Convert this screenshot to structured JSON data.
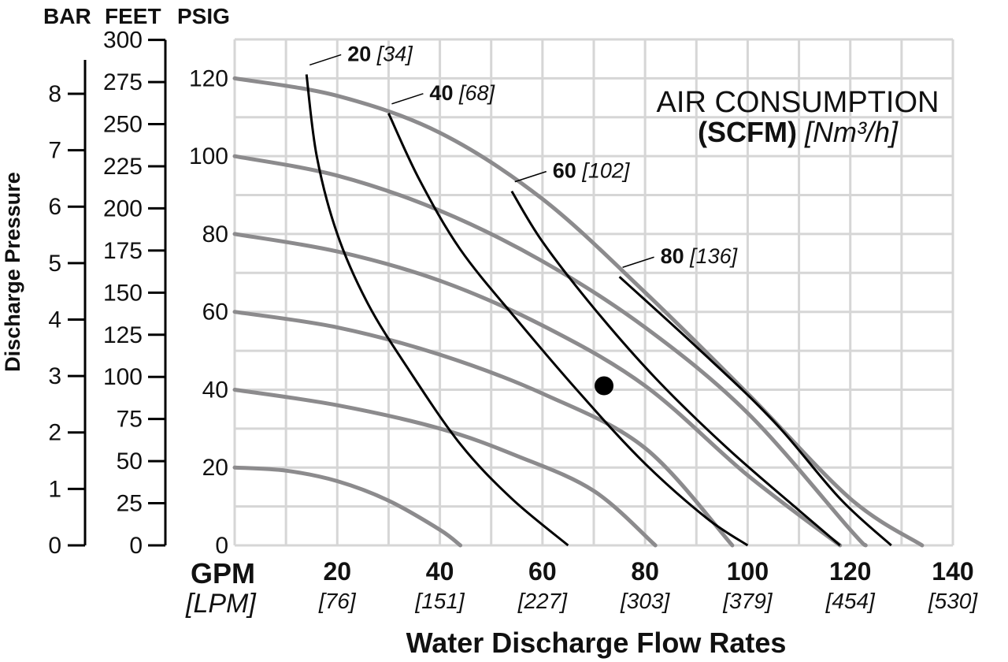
{
  "chart_data": {
    "type": "line",
    "title_line1": "AIR CONSUMPTION",
    "title_line2_bold": "(SCFM)",
    "title_line2_italic": "[Nm³/h]",
    "xlabel": "Water Discharge Flow Rates",
    "ylabel": "Discharge Pressure",
    "x_unit_primary": "GPM",
    "x_unit_secondary": "[LPM]",
    "xlim": [
      0,
      140
    ],
    "ylim": [
      0,
      130
    ],
    "x_ticks": [
      {
        "gpm": "20",
        "lpm": "[76]"
      },
      {
        "gpm": "40",
        "lpm": "[151]"
      },
      {
        "gpm": "60",
        "lpm": "[227]"
      },
      {
        "gpm": "80",
        "lpm": "[303]"
      },
      {
        "gpm": "100",
        "lpm": "[379]"
      },
      {
        "gpm": "120",
        "lpm": "[454]"
      },
      {
        "gpm": "140",
        "lpm": "[530]"
      }
    ],
    "psig_axis": {
      "label": "PSIG",
      "ticks": [
        "0",
        "20",
        "40",
        "60",
        "80",
        "100",
        "120"
      ]
    },
    "feet_axis": {
      "label": "FEET",
      "ticks": [
        "0",
        "25",
        "50",
        "75",
        "100",
        "125",
        "150",
        "175",
        "200",
        "225",
        "250",
        "275",
        "300"
      ]
    },
    "bar_axis": {
      "label": "BAR",
      "ticks": [
        "0",
        "1",
        "2",
        "3",
        "4",
        "5",
        "6",
        "7",
        "8"
      ]
    },
    "performance_curves": [
      {
        "psig_at_zero_flow": 20,
        "points": [
          [
            0,
            20
          ],
          [
            10,
            19.2
          ],
          [
            20,
            16.5
          ],
          [
            30,
            11.5
          ],
          [
            40,
            4
          ],
          [
            44,
            0
          ]
        ]
      },
      {
        "psig_at_zero_flow": 40,
        "points": [
          [
            0,
            40
          ],
          [
            20,
            36
          ],
          [
            40,
            30
          ],
          [
            55,
            23
          ],
          [
            70,
            14
          ],
          [
            82,
            0
          ]
        ]
      },
      {
        "psig_at_zero_flow": 60,
        "points": [
          [
            0,
            60
          ],
          [
            20,
            56
          ],
          [
            40,
            49
          ],
          [
            60,
            39
          ],
          [
            80,
            25
          ],
          [
            97,
            0
          ]
        ]
      },
      {
        "psig_at_zero_flow": 80,
        "points": [
          [
            0,
            80
          ],
          [
            20,
            75.5
          ],
          [
            40,
            68
          ],
          [
            60,
            56.5
          ],
          [
            80,
            41
          ],
          [
            100,
            18
          ],
          [
            118,
            0
          ]
        ]
      },
      {
        "psig_at_zero_flow": 100,
        "points": [
          [
            0,
            100
          ],
          [
            20,
            95
          ],
          [
            40,
            86
          ],
          [
            60,
            73
          ],
          [
            80,
            56
          ],
          [
            100,
            34
          ],
          [
            120,
            4
          ],
          [
            123,
            0
          ]
        ]
      },
      {
        "psig_at_zero_flow": 120,
        "points": [
          [
            0,
            120
          ],
          [
            20,
            115.5
          ],
          [
            40,
            106
          ],
          [
            60,
            89
          ],
          [
            80,
            65
          ],
          [
            100,
            39
          ],
          [
            120,
            12
          ],
          [
            134,
            0
          ]
        ]
      }
    ],
    "air_consumption_curves": [
      {
        "label": "20",
        "label_metric": "[34]",
        "points": [
          [
            14,
            121
          ],
          [
            16,
            100
          ],
          [
            20,
            80
          ],
          [
            26,
            62
          ],
          [
            34,
            45
          ],
          [
            44,
            26
          ],
          [
            54,
            12
          ],
          [
            65,
            0
          ]
        ]
      },
      {
        "label": "40",
        "label_metric": "[68]",
        "points": [
          [
            30,
            111
          ],
          [
            36,
            94
          ],
          [
            44,
            76
          ],
          [
            55,
            58
          ],
          [
            68,
            38
          ],
          [
            80,
            21
          ],
          [
            92,
            7
          ],
          [
            100,
            0
          ]
        ]
      },
      {
        "label": "60",
        "label_metric": "[102]",
        "points": [
          [
            54,
            91
          ],
          [
            60,
            78
          ],
          [
            70,
            61
          ],
          [
            82,
            43
          ],
          [
            96,
            25
          ],
          [
            110,
            9
          ],
          [
            118,
            0
          ]
        ]
      },
      {
        "label": "80",
        "label_metric": "[136]",
        "points": [
          [
            75,
            69
          ],
          [
            90,
            51
          ],
          [
            105,
            32
          ],
          [
            118,
            12
          ],
          [
            128,
            0
          ]
        ]
      }
    ],
    "marked_point": {
      "gpm": 72,
      "psig": 41
    }
  }
}
